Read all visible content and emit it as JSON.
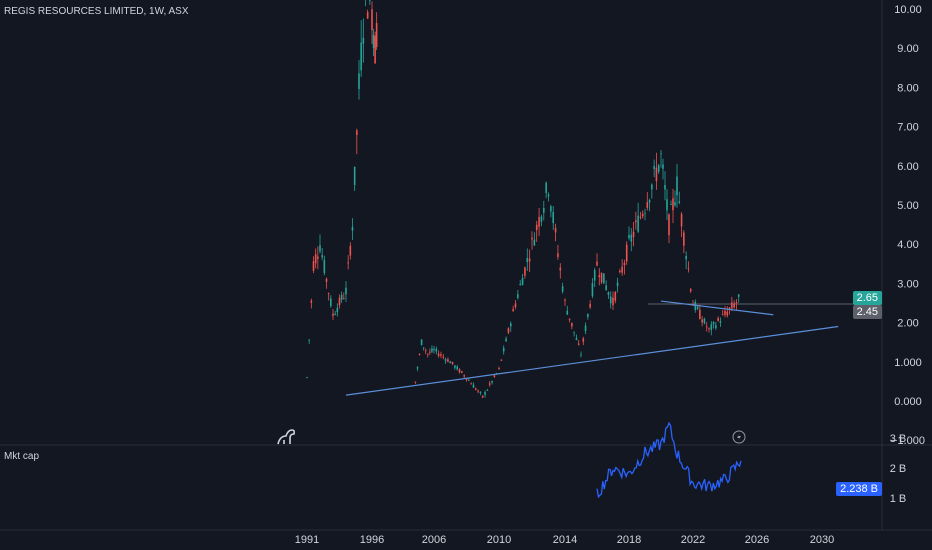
{
  "header": {
    "title": "REGIS RESOURCES LIMITED, 1W, ASX"
  },
  "subpane": {
    "title": "Mkt cap"
  },
  "colors": {
    "up": "#26a69a",
    "down": "#ef5350",
    "line": "#5b8fd9",
    "mktcap": "#2962ff",
    "bg": "#131722"
  },
  "price_labels": {
    "last": "2.65",
    "prev": "2.45",
    "mktcap": "2.238 B"
  },
  "icons": {
    "logo": "dino-logo-icon",
    "flash": "lightning-icon"
  },
  "chart_data": [
    {
      "type": "line",
      "title": "REGIS RESOURCES LIMITED, 1W, ASX",
      "x_ticks": [
        "1991",
        "1996",
        "2006",
        "2010",
        "2014",
        "2018",
        "2022",
        "2026",
        "2030"
      ],
      "y_ticks": [
        "10.00",
        "9.00",
        "8.00",
        "7.00",
        "6.00",
        "5.00",
        "4.00",
        "3.00",
        "2.00",
        "1.000",
        "0.000",
        "−1.000"
      ],
      "ylim": [
        -1,
        10
      ],
      "series": [
        {
          "x": [
            "1991",
            "1991.5",
            "1992",
            "1993",
            "1994",
            "1994.5",
            "1995",
            "1995.5",
            "1996",
            "1996.5",
            "1997"
          ],
          "y": [
            0.6,
            3.5,
            4.0,
            2.2,
            2.8,
            4.5,
            8.0,
            10.5,
            10.0,
            9.0,
            10.0
          ]
        },
        {
          "x": [
            "2003",
            "2004",
            "2005",
            "2006",
            "2007",
            "2008",
            "2009",
            "2010",
            "2011",
            "2012",
            "2013",
            "2014",
            "2015",
            "2016",
            "2017",
            "2018",
            "2019",
            "2020",
            "2020.5",
            "2021",
            "2022",
            "2023",
            "2024",
            "2025"
          ],
          "y": [
            0.5,
            1.5,
            1.2,
            1.3,
            1.0,
            0.6,
            0.1,
            0.8,
            2.5,
            4.0,
            5.5,
            2.5,
            1.2,
            3.5,
            2.5,
            4.0,
            5.0,
            6.2,
            4.5,
            5.5,
            2.5,
            1.8,
            2.2,
            2.65
          ]
        }
      ],
      "annotations": [
        {
          "label": "support trendline",
          "from": [
            "1994",
            0.15
          ],
          "to": [
            "2031",
            1.9
          ]
        },
        {
          "label": "resistance trendline",
          "from": [
            "2020",
            2.55
          ],
          "to": [
            "2027",
            2.2
          ]
        }
      ]
    },
    {
      "type": "area",
      "title": "Mkt cap",
      "y_ticks": [
        "3 B",
        "2 B",
        "1 B"
      ],
      "x": [
        "2016",
        "2017",
        "2018",
        "2019",
        "2020",
        "2020.5",
        "2021",
        "2022",
        "2023",
        "2024",
        "2025"
      ],
      "y": [
        1.1,
        2.0,
        1.8,
        2.5,
        2.8,
        3.4,
        2.5,
        1.5,
        1.4,
        1.6,
        2.24
      ]
    }
  ]
}
